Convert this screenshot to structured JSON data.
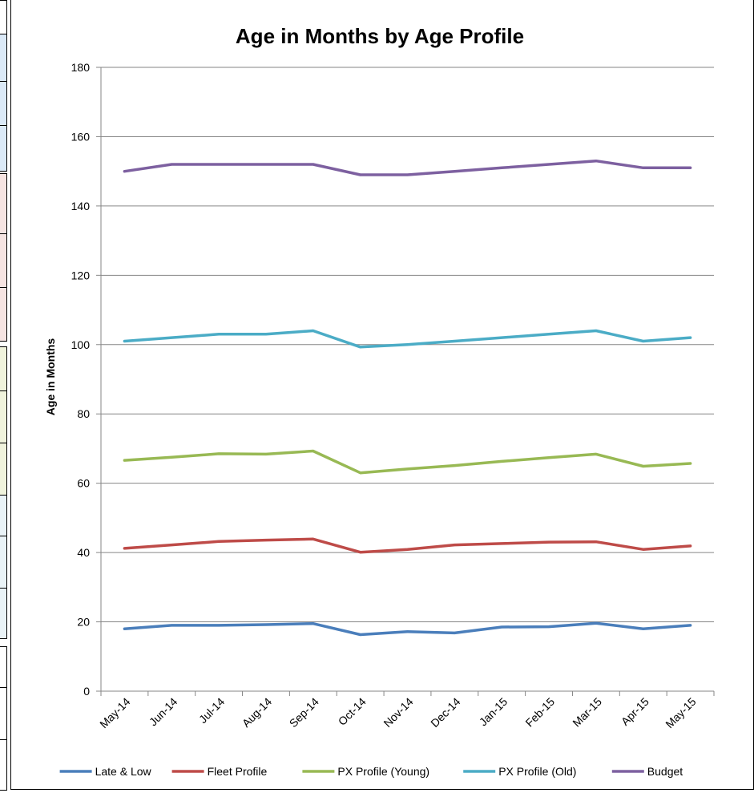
{
  "chart_data": {
    "type": "line",
    "title": "Age in Months by Age Profile",
    "xlabel": "",
    "ylabel": "Age in Months",
    "ylim": [
      0,
      180
    ],
    "yticks": [
      0,
      20,
      40,
      60,
      80,
      100,
      120,
      140,
      160,
      180
    ],
    "grid": true,
    "legend_position": "bottom",
    "categories": [
      "May-14",
      "Jun-14",
      "Jul-14",
      "Aug-14",
      "Sep-14",
      "Oct-14",
      "Nov-14",
      "Dec-14",
      "Jan-15",
      "Feb-15",
      "Mar-15",
      "Apr-15",
      "May-15"
    ],
    "series": [
      {
        "name": "Late & Low",
        "color": "#4a7ebb",
        "values": [
          18,
          19,
          19,
          19.2,
          19.5,
          16.3,
          17.2,
          16.8,
          18.5,
          18.6,
          19.6,
          18,
          19
        ]
      },
      {
        "name": "Fleet Profile",
        "color": "#be4b48",
        "values": [
          41.2,
          42.2,
          43.2,
          43.6,
          43.9,
          40.1,
          40.9,
          42.2,
          42.6,
          43,
          43.1,
          40.9,
          41.9
        ]
      },
      {
        "name": "PX Profile (Young)",
        "color": "#98b954",
        "values": [
          66.6,
          67.5,
          68.5,
          68.4,
          69.3,
          63,
          64.1,
          65.1,
          66.3,
          67.4,
          68.4,
          64.9,
          65.7
        ]
      },
      {
        "name": "PX Profile (Old)",
        "color": "#4bacc6",
        "values": [
          101,
          102,
          103,
          103,
          104,
          99.3,
          100,
          101,
          102,
          103,
          104,
          101,
          102
        ]
      },
      {
        "name": "Budget",
        "color": "#7d60a0",
        "values": [
          150,
          152,
          152,
          152,
          152,
          149,
          149,
          150,
          151,
          152,
          153,
          151,
          151
        ]
      }
    ]
  }
}
